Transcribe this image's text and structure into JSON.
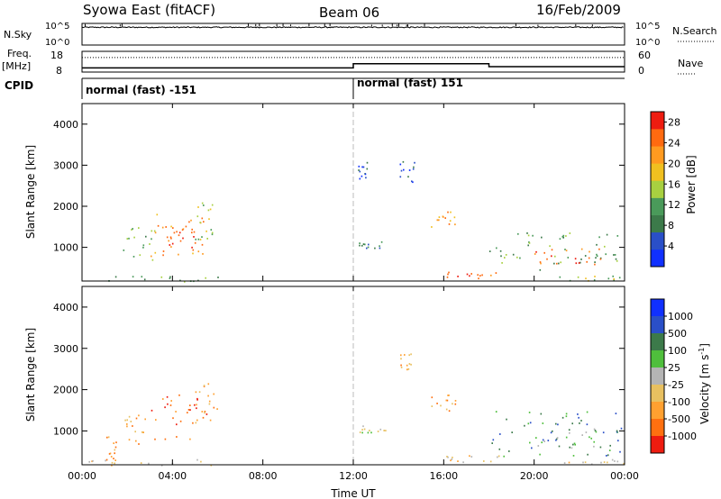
{
  "header": {
    "station": "Syowa East (fitACF)",
    "beam": "Beam 06",
    "date": "16/Feb/2009"
  },
  "side_labels": {
    "nsky": "N.Sky",
    "nsearch": "N.Search",
    "freq": "Freq.",
    "freq_unit": "[MHz]",
    "nave": "Nave",
    "cpid": "CPID"
  },
  "cpid_segments": [
    "normal (fast) -151",
    "normal (fast) 151"
  ],
  "colors": {
    "power": [
      "#1030ff",
      "#2a4fc8",
      "#3c7a4a",
      "#4a9a5a",
      "#a8d040",
      "#f0c020",
      "#ff9a20",
      "#ff6a10",
      "#ee1c10"
    ],
    "velocity": [
      "#1030ff",
      "#2a4fc8",
      "#3c7a4a",
      "#4fbf3c",
      "#b4b4b4",
      "#e8c060",
      "#ffa030",
      "#ff7010",
      "#ee1c10"
    ]
  },
  "chart_data": [
    {
      "type": "line",
      "panel": "noise",
      "ylabel_left": "N.Sky",
      "ylabel_right": "N.Search",
      "ytick_labels_left": [
        "10^5",
        "10^0"
      ],
      "ytick_labels_right": [
        "10^5",
        "10^0"
      ],
      "xlim": [
        0,
        24
      ],
      "x_unit": "hours UT",
      "series": [
        {
          "values_note": "",
          "level_log10": 4.1
        }
      ]
    },
    {
      "type": "line",
      "panel": "frequency",
      "ylabel_left": "Freq. [MHz]",
      "ylabel_right": "Nave",
      "yticks_left": [
        8,
        18
      ],
      "yticks_right": [
        0,
        60
      ],
      "xlim": [
        0,
        24
      ],
      "series": [
        {
          "x": [
            0,
            12,
            12,
            18,
            18,
            24
          ],
          "y": [
            10.0,
            10.0,
            12.0,
            12.0,
            10.6,
            10.6
          ]
        },
        {
          "x": [
            0,
            24
          ],
          "y": [
            42,
            42
          ]
        }
      ],
      "cpid_change_hours": [
        12
      ]
    },
    {
      "type": "heatmap",
      "panel": "power",
      "ylabel": "Slant Range [km]",
      "yticks": [
        1000,
        2000,
        3000,
        4000
      ],
      "ylim": [
        180,
        4500
      ],
      "xlim": [
        0,
        24
      ],
      "colorbar_label": "Power [dB]",
      "colorbar_ticks": [
        4,
        8,
        12,
        16,
        20,
        24,
        28
      ],
      "colorbar_range": [
        0,
        30
      ],
      "regions": [
        {
          "t0": 0.2,
          "t1": 6.0,
          "r0": 180,
          "r1": 320,
          "level": 3
        },
        {
          "t0": 1.8,
          "t1": 3.2,
          "r0": 700,
          "r1": 1500,
          "level": 3
        },
        {
          "t0": 3.0,
          "t1": 5.5,
          "r0": 800,
          "r1": 1900,
          "level": 6
        },
        {
          "t0": 3.6,
          "t1": 5.0,
          "r0": 900,
          "r1": 1600,
          "level": 8
        },
        {
          "t0": 5.0,
          "t1": 6.0,
          "r0": 1200,
          "r1": 2200,
          "level": 4
        },
        {
          "t0": 12.2,
          "t1": 13.3,
          "r0": 950,
          "r1": 1200,
          "level": 2
        },
        {
          "t0": 12.2,
          "t1": 12.7,
          "r0": 2600,
          "r1": 3100,
          "level": 1
        },
        {
          "t0": 14.0,
          "t1": 14.7,
          "r0": 2600,
          "r1": 3100,
          "level": 1
        },
        {
          "t0": 15.3,
          "t1": 16.5,
          "r0": 1500,
          "r1": 1900,
          "level": 6
        },
        {
          "t0": 16.0,
          "t1": 18.5,
          "r0": 260,
          "r1": 420,
          "level": 7
        },
        {
          "t0": 18.0,
          "t1": 24.0,
          "r0": 400,
          "r1": 1400,
          "level": 3
        },
        {
          "t0": 20.0,
          "t1": 23.0,
          "r0": 600,
          "r1": 1100,
          "level": 7
        },
        {
          "t0": 21.0,
          "t1": 24.0,
          "r0": 200,
          "r1": 320,
          "level": 4
        }
      ]
    },
    {
      "type": "heatmap",
      "panel": "velocity",
      "ylabel": "Slant Range [km]",
      "yticks": [
        1000,
        2000,
        3000,
        4000
      ],
      "ylim": [
        180,
        4500
      ],
      "xlim": [
        0,
        24
      ],
      "xticks": [
        "00:00",
        "04:00",
        "08:00",
        "12:00",
        "16:00",
        "20:00",
        "00:00"
      ],
      "xlabel": "Time UT",
      "colorbar_label": "Velocity [m s^-1]",
      "colorbar_ticks": [
        "1000",
        "500",
        "100",
        "25",
        "-25",
        "-100",
        "-500",
        "-1000"
      ],
      "regions": [
        {
          "t0": 0.2,
          "t1": 6.0,
          "r0": 180,
          "r1": 320,
          "level": 5
        },
        {
          "t0": 1.0,
          "t1": 1.5,
          "r0": 300,
          "r1": 900,
          "level": 6
        },
        {
          "t0": 1.8,
          "t1": 3.2,
          "r0": 700,
          "r1": 1400,
          "level": 6
        },
        {
          "t0": 3.0,
          "t1": 5.5,
          "r0": 800,
          "r1": 1900,
          "level": 7
        },
        {
          "t0": 5.0,
          "t1": 6.0,
          "r0": 1200,
          "r1": 2200,
          "level": 6
        },
        {
          "t0": 12.2,
          "t1": 13.5,
          "r0": 950,
          "r1": 1200,
          "level": 4
        },
        {
          "t0": 14.0,
          "t1": 14.6,
          "r0": 2500,
          "r1": 2900,
          "level": 6
        },
        {
          "t0": 15.3,
          "t1": 16.5,
          "r0": 1500,
          "r1": 1900,
          "level": 6
        },
        {
          "t0": 16.0,
          "t1": 18.5,
          "r0": 260,
          "r1": 420,
          "level": 5
        },
        {
          "t0": 18.0,
          "t1": 24.0,
          "r0": 400,
          "r1": 1500,
          "level": 2
        },
        {
          "t0": 20.0,
          "t1": 23.0,
          "r0": 600,
          "r1": 1100,
          "level": 3
        },
        {
          "t0": 21.0,
          "t1": 24.0,
          "r0": 200,
          "r1": 320,
          "level": 5
        }
      ]
    }
  ]
}
